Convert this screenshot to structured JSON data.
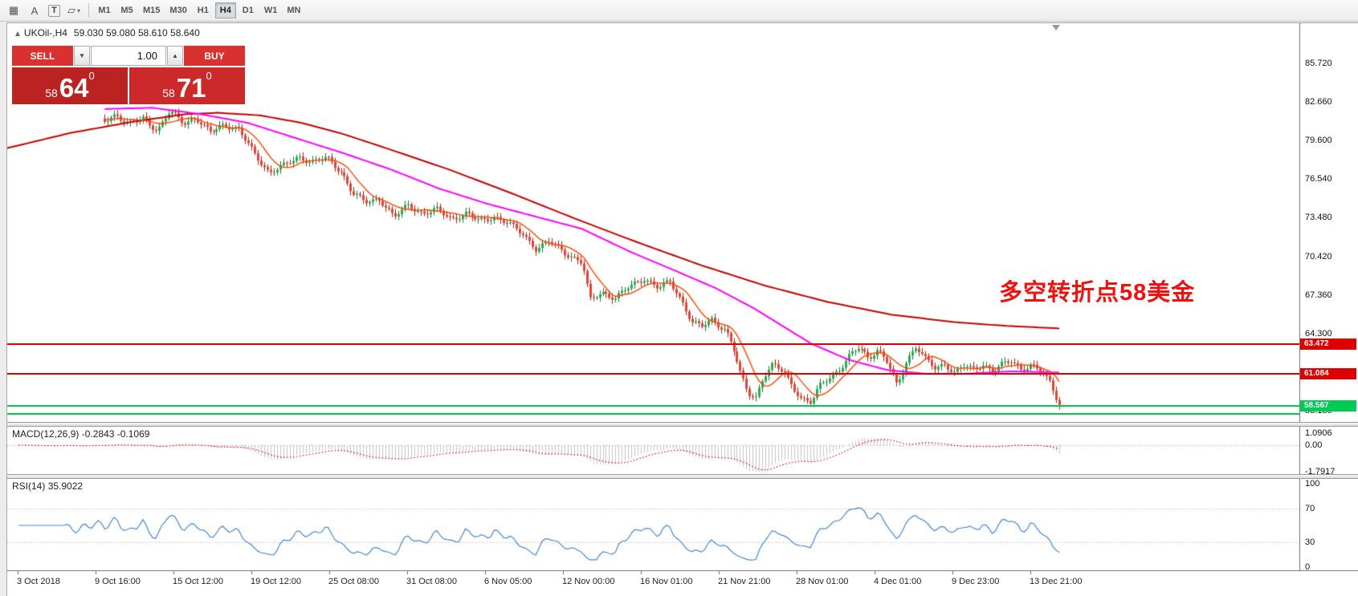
{
  "toolbar": {
    "tools": [
      {
        "name": "grid-tool-button",
        "glyph": "▦"
      },
      {
        "name": "text-label-button",
        "glyph": "A"
      },
      {
        "name": "text-box-button",
        "glyph": "T",
        "boxed": true
      },
      {
        "name": "shapes-button",
        "glyph": "▱",
        "caret": "▾"
      }
    ],
    "timeframes": [
      {
        "label": "M1"
      },
      {
        "label": "M5"
      },
      {
        "label": "M15"
      },
      {
        "label": "M30"
      },
      {
        "label": "H1"
      },
      {
        "label": "H4",
        "active": true
      },
      {
        "label": "D1"
      },
      {
        "label": "W1"
      },
      {
        "label": "MN"
      }
    ]
  },
  "chart": {
    "header": {
      "arrow": "▲",
      "symbol": "UKOil-,H4",
      "ohlc": "59.030 59.080 58.610 58.640"
    },
    "trade_panel": {
      "sell_label": "SELL",
      "buy_label": "BUY",
      "volume": "1.00",
      "dec_glyph": "▼",
      "inc_glyph": "▲",
      "sell_price_small": "58",
      "sell_price_big": "64",
      "sell_price_sup": "0",
      "buy_price_small": "58",
      "buy_price_big": "71",
      "buy_price_sup": "0",
      "button_red": "#d93030",
      "sell_box_red": "#bb2222",
      "buy_box_red": "#cc2a2a"
    },
    "annotation": {
      "text": "多空转折点58美金",
      "color": "#ee1111"
    },
    "price_axis": {
      "ticks": [
        "85.720",
        "82.660",
        "79.600",
        "76.540",
        "73.480",
        "70.420",
        "67.360",
        "64.300",
        "61.240",
        "58.180"
      ]
    },
    "h_lines": [
      {
        "price": 63.472,
        "label": "63.472",
        "color": "#dd0000",
        "tag": true
      },
      {
        "price": 61.084,
        "label": "61.084",
        "color": "#dd0000",
        "tag": true
      },
      {
        "price": 58.567,
        "label": "58.567",
        "color": "#00cc55",
        "tag": true
      },
      {
        "price": 57.9,
        "label": "",
        "color": "#00cc55",
        "tag": false
      }
    ],
    "series": {
      "close_waypoints": [
        [
          0.0,
          81.2
        ],
        [
          0.012,
          81.7
        ],
        [
          0.025,
          80.8
        ],
        [
          0.04,
          81.4
        ],
        [
          0.055,
          80.4
        ],
        [
          0.068,
          81.9
        ],
        [
          0.082,
          81.0
        ],
        [
          0.095,
          81.4
        ],
        [
          0.11,
          80.2
        ],
        [
          0.125,
          80.9
        ],
        [
          0.14,
          80.5
        ],
        [
          0.158,
          78.4
        ],
        [
          0.172,
          77.1
        ],
        [
          0.188,
          77.6
        ],
        [
          0.203,
          78.3
        ],
        [
          0.218,
          77.9
        ],
        [
          0.232,
          78.2
        ],
        [
          0.248,
          77.1
        ],
        [
          0.26,
          75.4
        ],
        [
          0.273,
          74.7
        ],
        [
          0.288,
          75.0
        ],
        [
          0.303,
          73.5
        ],
        [
          0.318,
          74.5
        ],
        [
          0.333,
          73.8
        ],
        [
          0.348,
          74.1
        ],
        [
          0.363,
          73.4
        ],
        [
          0.378,
          73.8
        ],
        [
          0.393,
          73.2
        ],
        [
          0.408,
          73.6
        ],
        [
          0.423,
          73.0
        ],
        [
          0.438,
          72.2
        ],
        [
          0.452,
          71.0
        ],
        [
          0.466,
          71.6
        ],
        [
          0.482,
          70.7
        ],
        [
          0.5,
          69.9
        ],
        [
          0.508,
          66.9
        ],
        [
          0.52,
          67.6
        ],
        [
          0.535,
          67.1
        ],
        [
          0.55,
          68.0
        ],
        [
          0.565,
          68.7
        ],
        [
          0.58,
          67.9
        ],
        [
          0.592,
          68.4
        ],
        [
          0.605,
          66.8
        ],
        [
          0.615,
          65.2
        ],
        [
          0.625,
          64.8
        ],
        [
          0.635,
          65.4
        ],
        [
          0.65,
          64.6
        ],
        [
          0.658,
          63.2
        ],
        [
          0.666,
          61.0
        ],
        [
          0.674,
          59.6
        ],
        [
          0.682,
          59.2
        ],
        [
          0.69,
          60.9
        ],
        [
          0.7,
          61.8
        ],
        [
          0.71,
          61.3
        ],
        [
          0.72,
          60.2
        ],
        [
          0.73,
          59.1
        ],
        [
          0.74,
          58.8
        ],
        [
          0.75,
          60.3
        ],
        [
          0.76,
          60.9
        ],
        [
          0.77,
          61.5
        ],
        [
          0.78,
          62.5
        ],
        [
          0.79,
          63.2
        ],
        [
          0.8,
          62.4
        ],
        [
          0.81,
          63.0
        ],
        [
          0.82,
          62.0
        ],
        [
          0.83,
          60.1
        ],
        [
          0.84,
          62.2
        ],
        [
          0.85,
          63.3
        ],
        [
          0.86,
          62.2
        ],
        [
          0.87,
          61.5
        ],
        [
          0.88,
          61.9
        ],
        [
          0.89,
          61.2
        ],
        [
          0.9,
          61.7
        ],
        [
          0.91,
          61.4
        ],
        [
          0.92,
          61.9
        ],
        [
          0.93,
          61.3
        ],
        [
          0.94,
          61.8
        ],
        [
          0.95,
          62.1
        ],
        [
          0.96,
          61.5
        ],
        [
          0.97,
          61.8
        ],
        [
          0.98,
          61.3
        ],
        [
          0.99,
          60.4
        ],
        [
          1.0,
          58.7
        ]
      ],
      "ma_mid_waypoints": [
        [
          0.0,
          82.1
        ],
        [
          0.05,
          82.2
        ],
        [
          0.1,
          81.7
        ],
        [
          0.15,
          81.0
        ],
        [
          0.2,
          79.8
        ],
        [
          0.25,
          78.6
        ],
        [
          0.3,
          77.3
        ],
        [
          0.35,
          75.8
        ],
        [
          0.4,
          74.6
        ],
        [
          0.45,
          73.6
        ],
        [
          0.5,
          72.6
        ],
        [
          0.55,
          70.8
        ],
        [
          0.6,
          69.2
        ],
        [
          0.64,
          67.9
        ],
        [
          0.68,
          66.3
        ],
        [
          0.71,
          64.9
        ],
        [
          0.74,
          63.5
        ],
        [
          0.78,
          62.2
        ],
        [
          0.82,
          61.4
        ],
        [
          0.86,
          61.1
        ],
        [
          0.9,
          61.1
        ],
        [
          0.95,
          61.3
        ],
        [
          1.0,
          61.2
        ]
      ],
      "ma_slow_waypoints": [
        [
          0.0,
          79.0
        ],
        [
          0.06,
          80.2
        ],
        [
          0.12,
          81.1
        ],
        [
          0.17,
          81.7
        ],
        [
          0.2,
          81.8
        ],
        [
          0.24,
          81.6
        ],
        [
          0.28,
          81.0
        ],
        [
          0.32,
          80.1
        ],
        [
          0.36,
          79.0
        ],
        [
          0.42,
          77.3
        ],
        [
          0.48,
          75.4
        ],
        [
          0.54,
          73.4
        ],
        [
          0.6,
          71.5
        ],
        [
          0.66,
          69.7
        ],
        [
          0.72,
          68.1
        ],
        [
          0.78,
          66.8
        ],
        [
          0.84,
          65.8
        ],
        [
          0.9,
          65.2
        ],
        [
          0.95,
          64.9
        ],
        [
          1.0,
          64.7
        ]
      ]
    },
    "palette": {
      "up": "#2ca94f",
      "up_dark": "#17713a",
      "down": "#df4434",
      "down_dark": "#9c2417",
      "ma_fast": "#ff4500",
      "ma_mid": "#ff00ff",
      "ma_slow": "#c40000"
    }
  },
  "macd": {
    "name": "MACD(12,26,9)",
    "values": "-0.2843 -0.1069",
    "axis": [
      "1.0906",
      "0.00",
      "-1.7917"
    ],
    "range_max": 1.0906,
    "range_min": -1.7917,
    "hist_color": "#c4c4c4",
    "signal_color": "#e00000"
  },
  "rsi": {
    "name": "RSI(14)",
    "value": "35.9022",
    "axis": [
      "100",
      "70",
      "30",
      "0"
    ],
    "levels": [
      70,
      30
    ],
    "line_color": "#4787cf"
  },
  "time_axis": {
    "labels": [
      "3 Oct 2018",
      "9 Oct 16:00",
      "15 Oct 12:00",
      "19 Oct 12:00",
      "25 Oct 08:00",
      "31 Oct 08:00",
      "6 Nov 05:00",
      "12 Nov 00:00",
      "16 Nov 01:00",
      "21 Nov 21:00",
      "28 Nov 01:00",
      "4 Dec 01:00",
      "9 Dec 23:00",
      "13 Dec 21:00"
    ]
  }
}
